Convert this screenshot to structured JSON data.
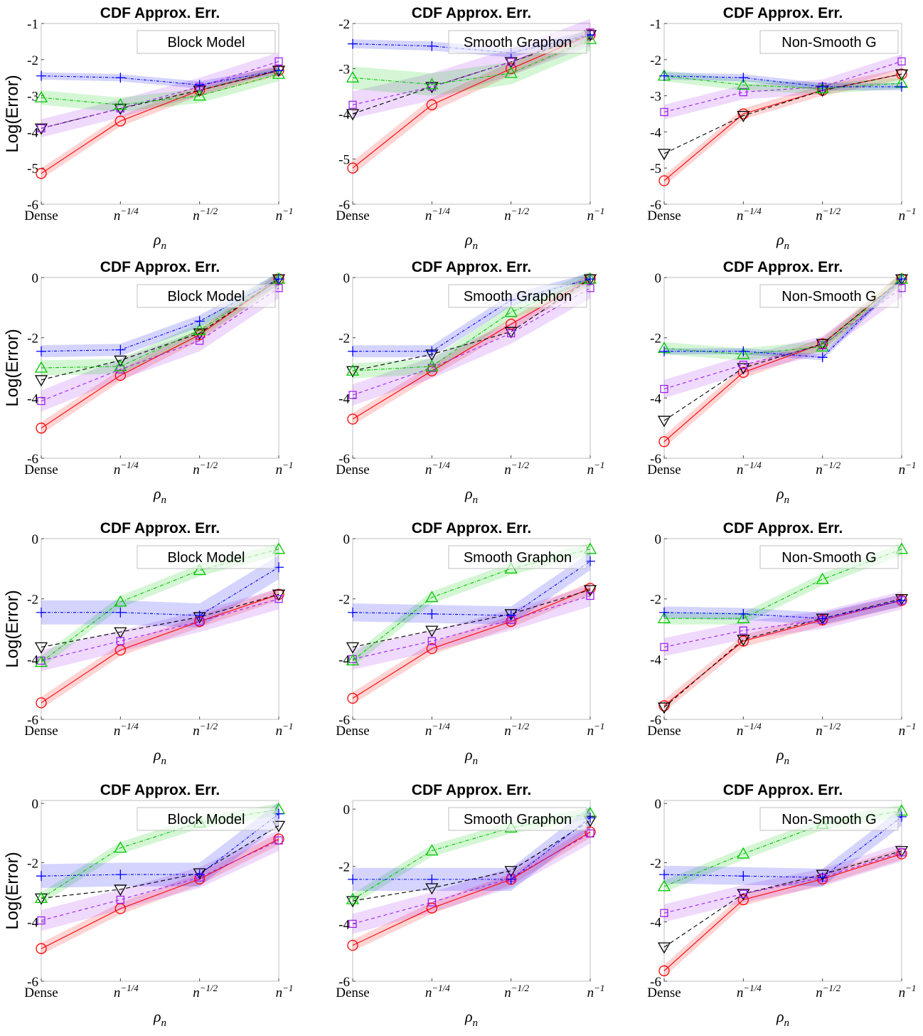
{
  "series_styles": [
    {
      "key": "circle",
      "color": "#ff0000",
      "band": "#ff0000",
      "dash": "",
      "marker": "circle"
    },
    {
      "key": "tri_down",
      "color": "#000000",
      "band": "#000000",
      "dash": "6,4",
      "marker": "triangle-down"
    },
    {
      "key": "square",
      "color": "#a020f0",
      "band": "#a020f0",
      "dash": "5,4",
      "marker": "square"
    },
    {
      "key": "tri_up",
      "color": "#00c800",
      "band": "#00c800",
      "dash": "5,2,1,2",
      "marker": "triangle-up"
    },
    {
      "key": "plus",
      "color": "#0000ff",
      "band": "#0000ff",
      "dash": "4,2,1,2",
      "marker": "plus"
    }
  ],
  "chart_data": [
    {
      "type": "line",
      "title": "CDF Approx. Err.",
      "legend": "Block Model",
      "ylabel": "Log(Error)",
      "xlabel": "ρn",
      "categories": [
        "Dense",
        "n^-1/4",
        "n^-1/2",
        "n^-1"
      ],
      "ylim": [
        -6,
        -1
      ],
      "yticks": [
        "-6",
        "-5",
        "-4",
        "-3",
        "-2",
        "-1"
      ],
      "series": [
        {
          "style": "circle",
          "values": [
            -5.15,
            -3.7,
            -2.85,
            -2.3
          ],
          "band": 0.15
        },
        {
          "style": "tri_down",
          "values": [
            -3.9,
            -3.35,
            -2.85,
            -2.3
          ],
          "band": 0
        },
        {
          "style": "square",
          "values": [
            -3.9,
            -3.35,
            -2.75,
            -2.05
          ],
          "band": 0.25
        },
        {
          "style": "tri_up",
          "values": [
            -3.05,
            -3.25,
            -3.0,
            -2.4
          ],
          "band": 0.2
        },
        {
          "style": "plus",
          "values": [
            -2.45,
            -2.5,
            -2.7,
            -2.3
          ],
          "band": 0.1
        }
      ]
    },
    {
      "type": "line",
      "title": "CDF Approx. Err.",
      "legend": "Smooth Graphon",
      "ylabel": "",
      "xlabel": "ρn",
      "categories": [
        "Dense",
        "n^-1/4",
        "n^-1/2",
        "n^-1"
      ],
      "ylim": [
        -6,
        -2
      ],
      "yticks": [
        "-6",
        "-5",
        "-4",
        "-3",
        "-2"
      ],
      "series": [
        {
          "style": "circle",
          "values": [
            -5.2,
            -3.8,
            -3.0,
            -2.25
          ],
          "band": 0.15
        },
        {
          "style": "tri_down",
          "values": [
            -4.0,
            -3.4,
            -2.85,
            -2.25
          ],
          "band": 0
        },
        {
          "style": "square",
          "values": [
            -3.8,
            -3.4,
            -2.85,
            -2.2
          ],
          "band": 0.3
        },
        {
          "style": "tri_up",
          "values": [
            -3.2,
            -3.35,
            -3.1,
            -2.35
          ],
          "band": 0.25
        },
        {
          "style": "plus",
          "values": [
            -2.45,
            -2.5,
            -2.65,
            -2.25
          ],
          "band": 0.1
        }
      ]
    },
    {
      "type": "line",
      "title": "CDF Approx. Err.",
      "legend": "Non-Smooth G",
      "ylabel": "",
      "xlabel": "ρn",
      "categories": [
        "Dense",
        "n^-1/4",
        "n^-1/2",
        "n^-1"
      ],
      "ylim": [
        -6,
        -1
      ],
      "yticks": [
        "-6",
        "-5",
        "-4",
        "-3",
        "-2",
        "-1"
      ],
      "series": [
        {
          "style": "circle",
          "values": [
            -5.35,
            -3.5,
            -2.85,
            -2.4
          ],
          "band": 0.15
        },
        {
          "style": "tri_down",
          "values": [
            -4.6,
            -3.55,
            -2.85,
            -2.4
          ],
          "band": 0
        },
        {
          "style": "square",
          "values": [
            -3.45,
            -2.9,
            -2.75,
            -2.05
          ],
          "band": 0.2
        },
        {
          "style": "tri_up",
          "values": [
            -2.45,
            -2.7,
            -2.8,
            -2.65
          ],
          "band": 0.15
        },
        {
          "style": "plus",
          "values": [
            -2.45,
            -2.5,
            -2.75,
            -2.75
          ],
          "band": 0.1
        }
      ]
    },
    {
      "type": "line",
      "title": "CDF Approx. Err.",
      "legend": "Block Model",
      "ylabel": "Log(Error)",
      "xlabel": "ρn",
      "categories": [
        "Dense",
        "n^-1/4",
        "n^-1/2",
        "n^-1"
      ],
      "ylim": [
        -6,
        0
      ],
      "yticks": [
        "-6",
        "-4",
        "-2",
        "0"
      ],
      "series": [
        {
          "style": "circle",
          "values": [
            -5.0,
            -3.25,
            -1.9,
            -0.05
          ],
          "band": 0.2
        },
        {
          "style": "tri_down",
          "values": [
            -3.4,
            -2.75,
            -1.85,
            -0.05
          ],
          "band": 0
        },
        {
          "style": "square",
          "values": [
            -4.1,
            -3.05,
            -2.1,
            -0.35
          ],
          "band": 0.35
        },
        {
          "style": "tri_up",
          "values": [
            -3.0,
            -2.95,
            -1.75,
            -0.05
          ],
          "band": 0.25
        },
        {
          "style": "plus",
          "values": [
            -2.45,
            -2.4,
            -1.45,
            -0.05
          ],
          "band": 0.2
        }
      ]
    },
    {
      "type": "line",
      "title": "CDF Approx. Err.",
      "legend": "Smooth Graphon",
      "ylabel": "",
      "xlabel": "ρn",
      "categories": [
        "Dense",
        "n^-1/4",
        "n^-1/2",
        "n^-1"
      ],
      "ylim": [
        -6,
        0
      ],
      "yticks": [
        "-6",
        "-4",
        "-2",
        "0"
      ],
      "series": [
        {
          "style": "circle",
          "values": [
            -4.7,
            -3.1,
            -1.55,
            -0.05
          ],
          "band": 0.2
        },
        {
          "style": "tri_down",
          "values": [
            -3.1,
            -2.55,
            -1.8,
            -0.05
          ],
          "band": 0
        },
        {
          "style": "square",
          "values": [
            -3.9,
            -3.0,
            -1.85,
            -0.35
          ],
          "band": 0.35
        },
        {
          "style": "tri_up",
          "values": [
            -3.1,
            -2.95,
            -1.15,
            -0.05
          ],
          "band": 0.25
        },
        {
          "style": "plus",
          "values": [
            -2.45,
            -2.45,
            -0.75,
            -0.05
          ],
          "band": 0.2
        }
      ]
    },
    {
      "type": "line",
      "title": "CDF Approx. Err.",
      "legend": "Non-Smooth G",
      "ylabel": "",
      "xlabel": "ρn",
      "categories": [
        "Dense",
        "n^-1/4",
        "n^-1/2",
        "n^-1"
      ],
      "ylim": [
        -6,
        0
      ],
      "yticks": [
        "-6",
        "-4",
        "-2",
        "0"
      ],
      "series": [
        {
          "style": "circle",
          "values": [
            -5.45,
            -3.15,
            -2.2,
            -0.05
          ],
          "band": 0.2
        },
        {
          "style": "tri_down",
          "values": [
            -4.75,
            -3.0,
            -2.2,
            -0.05
          ],
          "band": 0
        },
        {
          "style": "square",
          "values": [
            -3.7,
            -2.9,
            -2.25,
            -0.35
          ],
          "band": 0.3
        },
        {
          "style": "tri_up",
          "values": [
            -2.35,
            -2.55,
            -2.3,
            -0.05
          ],
          "band": 0.2
        },
        {
          "style": "plus",
          "values": [
            -2.45,
            -2.45,
            -2.65,
            -0.05
          ],
          "band": 0.1
        }
      ]
    },
    {
      "type": "line",
      "title": "CDF Approx. Err.",
      "legend": "Block Model",
      "ylabel": "Log(Error)",
      "xlabel": "ρn",
      "categories": [
        "Dense",
        "n^-1/4",
        "n^-1/2",
        "n^-1"
      ],
      "ylim": [
        -6,
        0
      ],
      "yticks": [
        "-6",
        "-4",
        "-2",
        "0"
      ],
      "series": [
        {
          "style": "circle",
          "values": [
            -5.45,
            -3.7,
            -2.75,
            -1.85
          ],
          "band": 0.2
        },
        {
          "style": "tri_down",
          "values": [
            -3.6,
            -3.1,
            -2.6,
            -1.85
          ],
          "band": 0
        },
        {
          "style": "square",
          "values": [
            -4.05,
            -3.4,
            -2.75,
            -2.0
          ],
          "band": 0.35
        },
        {
          "style": "tri_up",
          "values": [
            -4.1,
            -2.1,
            -1.05,
            -0.35
          ],
          "band": 0.2
        },
        {
          "style": "plus",
          "values": [
            -2.45,
            -2.45,
            -2.55,
            -0.95
          ],
          "band": 0.4
        }
      ]
    },
    {
      "type": "line",
      "title": "CDF Approx. Err.",
      "legend": "Smooth Graphon",
      "ylabel": "",
      "xlabel": "ρn",
      "categories": [
        "Dense",
        "n^-1/4",
        "n^-1/2",
        "n^-1"
      ],
      "ylim": [
        -6,
        0
      ],
      "yticks": [
        "-6",
        "-4",
        "-2",
        "0"
      ],
      "series": [
        {
          "style": "circle",
          "values": [
            -5.3,
            -3.65,
            -2.75,
            -1.65
          ],
          "band": 0.2
        },
        {
          "style": "tri_down",
          "values": [
            -3.6,
            -3.05,
            -2.5,
            -1.7
          ],
          "band": 0
        },
        {
          "style": "square",
          "values": [
            -4.0,
            -3.4,
            -2.7,
            -1.9
          ],
          "band": 0.35
        },
        {
          "style": "tri_up",
          "values": [
            -4.05,
            -1.95,
            -1.0,
            -0.35
          ],
          "band": 0.2
        },
        {
          "style": "plus",
          "values": [
            -2.45,
            -2.5,
            -2.55,
            -0.75
          ],
          "band": 0.3
        }
      ]
    },
    {
      "type": "line",
      "title": "CDF Approx. Err.",
      "legend": "Non-Smooth G",
      "ylabel": "",
      "xlabel": "ρn",
      "categories": [
        "Dense",
        "n^-1/4",
        "n^-1/2",
        "n^-1"
      ],
      "ylim": [
        -6,
        0
      ],
      "yticks": [
        "-6",
        "-4",
        "-2",
        "0"
      ],
      "series": [
        {
          "style": "circle",
          "values": [
            -5.55,
            -3.4,
            -2.7,
            -2.05
          ],
          "band": 0.2
        },
        {
          "style": "tri_down",
          "values": [
            -5.6,
            -3.35,
            -2.65,
            -2.0
          ],
          "band": 0
        },
        {
          "style": "square",
          "values": [
            -3.6,
            -3.05,
            -2.7,
            -2.05
          ],
          "band": 0.3
        },
        {
          "style": "tri_up",
          "values": [
            -2.65,
            -2.65,
            -1.35,
            -0.35
          ],
          "band": 0.2
        },
        {
          "style": "plus",
          "values": [
            -2.45,
            -2.5,
            -2.65,
            -2.05
          ],
          "band": 0.2
        }
      ]
    },
    {
      "type": "line",
      "title": "CDF Approx. Err.",
      "legend": "Block Model",
      "ylabel": "Log(Error)",
      "xlabel": "ρn",
      "categories": [
        "Dense",
        "n^-1/4",
        "n^-1/2",
        "n^-1"
      ],
      "ylim": [
        -6,
        0.1
      ],
      "yticks": [
        "-6",
        "-4",
        "-2",
        "0"
      ],
      "series": [
        {
          "style": "circle",
          "values": [
            -4.9,
            -3.55,
            -2.55,
            -1.2
          ],
          "band": 0.2
        },
        {
          "style": "tri_down",
          "values": [
            -3.2,
            -2.9,
            -2.35,
            -0.75
          ],
          "band": 0
        },
        {
          "style": "square",
          "values": [
            -3.95,
            -3.25,
            -2.5,
            -1.25
          ],
          "band": 0.35
        },
        {
          "style": "tri_up",
          "values": [
            -3.2,
            -1.5,
            -0.65,
            -0.2
          ],
          "band": 0.2
        },
        {
          "style": "plus",
          "values": [
            -2.45,
            -2.4,
            -2.4,
            -0.35
          ],
          "band": 0.4
        }
      ]
    },
    {
      "type": "line",
      "title": "CDF Approx. Err.",
      "legend": "Smooth Graphon",
      "ylabel": "",
      "xlabel": "ρn",
      "categories": [
        "Dense",
        "n^-1/4",
        "n^-1/2",
        "n^-1"
      ],
      "ylim": [
        -6,
        0.3
      ],
      "yticks": [
        "-6",
        "-4",
        "-2",
        "0"
      ],
      "series": [
        {
          "style": "circle",
          "values": [
            -4.75,
            -3.45,
            -2.45,
            -0.8
          ],
          "band": 0.2
        },
        {
          "style": "tri_down",
          "values": [
            -3.2,
            -2.75,
            -2.15,
            -0.4
          ],
          "band": 0
        },
        {
          "style": "square",
          "values": [
            -4.0,
            -3.25,
            -2.4,
            -0.85
          ],
          "band": 0.35
        },
        {
          "style": "tri_up",
          "values": [
            -3.15,
            -1.45,
            -0.65,
            -0.15
          ],
          "band": 0.2
        },
        {
          "style": "plus",
          "values": [
            -2.45,
            -2.45,
            -2.45,
            -0.3
          ],
          "band": 0.4
        }
      ]
    },
    {
      "type": "line",
      "title": "CDF Approx. Err.",
      "legend": "Non-Smooth G",
      "ylabel": "",
      "xlabel": "ρn",
      "categories": [
        "Dense",
        "n^-1/4",
        "n^-1/2",
        "n^-1"
      ],
      "ylim": [
        -6,
        0.1
      ],
      "yticks": [
        "-6",
        "-4",
        "-2",
        "0"
      ],
      "series": [
        {
          "style": "circle",
          "values": [
            -5.65,
            -3.25,
            -2.55,
            -1.7
          ],
          "band": 0.2
        },
        {
          "style": "tri_down",
          "values": [
            -4.85,
            -3.05,
            -2.4,
            -1.6
          ],
          "band": 0
        },
        {
          "style": "square",
          "values": [
            -3.7,
            -3.05,
            -2.5,
            -1.65
          ],
          "band": 0.3
        },
        {
          "style": "tri_up",
          "values": [
            -2.8,
            -1.7,
            -0.7,
            -0.25
          ],
          "band": 0.2
        },
        {
          "style": "plus",
          "values": [
            -2.4,
            -2.45,
            -2.5,
            -0.45
          ],
          "band": 0.3
        }
      ]
    }
  ]
}
